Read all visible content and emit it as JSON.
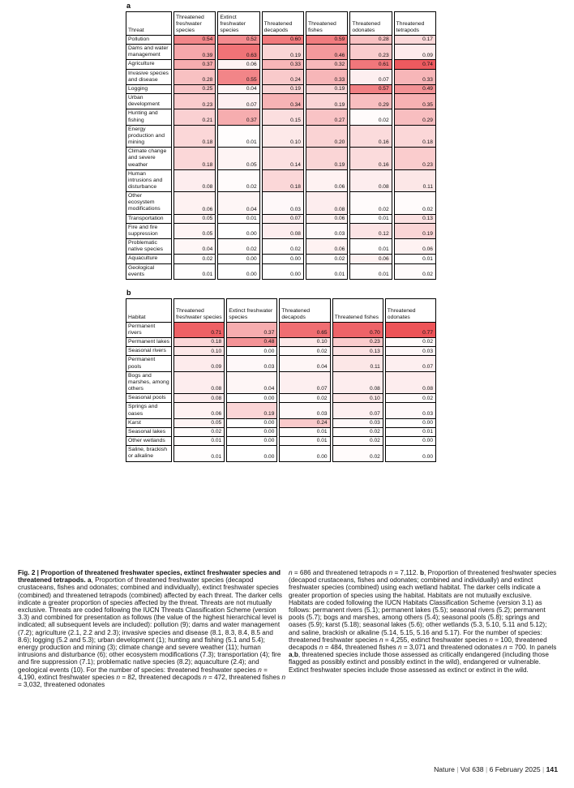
{
  "heat": {
    "zero": "#ffffff",
    "max": "#ec4d52",
    "cap": 0.8,
    "border": "#000000"
  },
  "chart_data": [
    {
      "type": "heatmap",
      "panel": "a",
      "row_header": "Threat",
      "label_col_width": 57,
      "columns": [
        "Threatened freshwater species",
        "Extinct freshwater species",
        "Threatened decapods",
        "Threatened fishes",
        "Threatened odonates",
        "Threatened tetrapods"
      ],
      "value_range": [
        0,
        1
      ],
      "rows": [
        {
          "label": "Pollution",
          "values": [
            0.54,
            0.52,
            0.6,
            0.59,
            0.28,
            0.17
          ]
        },
        {
          "label": "Dams and water management",
          "values": [
            0.39,
            0.63,
            0.19,
            0.46,
            0.23,
            0.09
          ]
        },
        {
          "label": "Agriculture",
          "values": [
            0.37,
            0.06,
            0.33,
            0.32,
            0.61,
            0.74
          ]
        },
        {
          "label": "Invasive species and disease",
          "values": [
            0.28,
            0.55,
            0.24,
            0.33,
            0.07,
            0.33
          ]
        },
        {
          "label": "Logging",
          "values": [
            0.25,
            0.04,
            0.19,
            0.19,
            0.57,
            0.49
          ]
        },
        {
          "label": "Urban development",
          "values": [
            0.23,
            0.07,
            0.34,
            0.19,
            0.29,
            0.35
          ]
        },
        {
          "label": "Hunting and fishing",
          "values": [
            0.21,
            0.37,
            0.15,
            0.27,
            0.02,
            0.29
          ]
        },
        {
          "label": "Energy production and mining",
          "values": [
            0.18,
            0.01,
            0.1,
            0.2,
            0.16,
            0.18
          ]
        },
        {
          "label": "Climate change and severe weather",
          "values": [
            0.18,
            0.05,
            0.14,
            0.19,
            0.16,
            0.23
          ]
        },
        {
          "label": "Human intrusions and disturbance",
          "values": [
            0.08,
            0.02,
            0.18,
            0.06,
            0.08,
            0.11
          ]
        },
        {
          "label": "Other ecosystem modifications",
          "values": [
            0.06,
            0.04,
            0.03,
            0.08,
            0.02,
            0.02
          ]
        },
        {
          "label": "Transportation",
          "values": [
            0.05,
            0.01,
            0.07,
            0.06,
            0.01,
            0.13
          ]
        },
        {
          "label": "Fire and fire suppression",
          "values": [
            0.05,
            0.0,
            0.08,
            0.03,
            0.12,
            0.19
          ]
        },
        {
          "label": "Problematic native species",
          "values": [
            0.04,
            0.02,
            0.02,
            0.06,
            0.01,
            0.06
          ]
        },
        {
          "label": "Aquaculture",
          "values": [
            0.02,
            0.0,
            0.0,
            0.02,
            0.06,
            0.01
          ]
        },
        {
          "label": "Geological events",
          "values": [
            0.01,
            0.0,
            0.0,
            0.01,
            0.01,
            0.02
          ]
        }
      ]
    },
    {
      "type": "heatmap",
      "panel": "b",
      "row_header": "Habitat",
      "label_col_width": 57,
      "columns": [
        "Threatened freshwater species",
        "Extinct freshwater species",
        "Threatened decapods",
        "Threatened fishes",
        "Threatened odonates"
      ],
      "value_range": [
        0,
        1
      ],
      "rows": [
        {
          "label": "Permanent rivers",
          "values": [
            0.71,
            0.37,
            0.65,
            0.7,
            0.77
          ]
        },
        {
          "label": "Permanent lakes",
          "values": [
            0.18,
            0.48,
            0.1,
            0.23,
            0.02
          ]
        },
        {
          "label": "Seasonal rivers",
          "values": [
            0.1,
            0.0,
            0.02,
            0.13,
            0.03
          ]
        },
        {
          "label": "Permanent pools",
          "values": [
            0.09,
            0.03,
            0.04,
            0.11,
            0.07
          ]
        },
        {
          "label": "Bogs and marshes, among others",
          "values": [
            0.08,
            0.04,
            0.07,
            0.08,
            0.08
          ]
        },
        {
          "label": "Seasonal pools",
          "values": [
            0.08,
            0.0,
            0.02,
            0.1,
            0.02
          ]
        },
        {
          "label": "Springs and oases",
          "values": [
            0.06,
            0.19,
            0.03,
            0.07,
            0.03
          ]
        },
        {
          "label": "Karst",
          "values": [
            0.05,
            0.0,
            0.24,
            0.03,
            0.0
          ]
        },
        {
          "label": "Seasonal lakes",
          "values": [
            0.02,
            0.0,
            0.01,
            0.02,
            0.01
          ]
        },
        {
          "label": "Other wetlands",
          "values": [
            0.01,
            0.0,
            0.01,
            0.02,
            0.0
          ]
        },
        {
          "label": "Saline, brackish or alkaline",
          "values": [
            0.01,
            0.0,
            0.0,
            0.02,
            0.0
          ]
        }
      ]
    }
  ],
  "caption": {
    "left_segments": [
      {
        "t": "Fig. 2 | Proportion of threatened freshwater species, extinct freshwater species and threatened tetrapods. ",
        "b": true
      },
      {
        "t": "a",
        "b": true
      },
      {
        "t": ", Proportion of threatened freshwater species (decapod crustaceans, fishes and odonates; combined and individually), extinct freshwater species (combined) and threatened tetrapods (combined) affected by each threat. The darker cells indicate a greater proportion of species affected by the threat. Threats are not mutually exclusive. Threats are coded following the IUCN Threats Classification Scheme (version 3.3) and combined for presentation as follows (the value of the highest hierarchical level is indicated; all subsequent levels are included): pollution (9); dams and water management (7.2); agriculture (2.1, 2.2 and 2.3); invasive species and disease (8.1, 8.3, 8.4, 8.5 and 8.6); logging (5.2 and 5.3); urban development (1); hunting and fishing (5.1 and 5.4); energy production and mining (3); climate change and severe weather (11); human intrusions and disturbance (6); other ecosystem modifications (7.3); transportation (4); fire and fire suppression (7.1); problematic native species (8.2); aquaculture (2.4); and geological events (10). For the number of species: threatened freshwater species "
      },
      {
        "t": "n",
        "i": true
      },
      {
        "t": " = 4,190, extinct freshwater species "
      },
      {
        "t": "n",
        "i": true
      },
      {
        "t": " = 82, threatened decapods "
      },
      {
        "t": "n",
        "i": true
      },
      {
        "t": " = 472, threatened fishes "
      },
      {
        "t": "n",
        "i": true
      },
      {
        "t": " = 3,032, threatened odonates"
      }
    ],
    "right_segments": [
      {
        "t": "n",
        "i": true
      },
      {
        "t": " = 686 and threatened tetrapods "
      },
      {
        "t": "n",
        "i": true
      },
      {
        "t": " = 7,112. "
      },
      {
        "t": "b",
        "b": true
      },
      {
        "t": ", Proportion of threatened freshwater species (decapod crustaceans, fishes and odonates; combined and individually) and extinct freshwater species (combined) using each wetland habitat. The darker cells indicate a greater proportion of species using the habitat. Habitats are not mutually exclusive. Habitats are coded following the IUCN Habitats Classification Scheme (version 3.1) as follows: permanent rivers (5.1); permanent lakes (5.5); seasonal rivers (5.2); permanent pools (5.7); bogs and marshes, among others (5.4); seasonal pools (5.8); springs and oases (5.9); karst (5.18); seasonal lakes (5.6); other wetlands (5.3, 5.10, 5.11 and 5.12); and saline, brackish or alkaline (5.14, 5.15, 5.16 and 5.17). For the number of species: threatened freshwater species "
      },
      {
        "t": "n",
        "i": true
      },
      {
        "t": " = 4,255, extinct freshwater species "
      },
      {
        "t": "n",
        "i": true
      },
      {
        "t": " = 100, threatened decapods "
      },
      {
        "t": "n",
        "i": true
      },
      {
        "t": " = 484, threatened fishes "
      },
      {
        "t": "n",
        "i": true
      },
      {
        "t": " = 3,071 and threatened odonates "
      },
      {
        "t": "n",
        "i": true
      },
      {
        "t": " = 700. In panels "
      },
      {
        "t": "a",
        "b": true
      },
      {
        "t": ","
      },
      {
        "t": "b",
        "b": true
      },
      {
        "t": ", threatened species include those assessed as critically endangered (including those flagged as possibly extinct and possibly extinct in the wild), endangered or vulnerable. Extinct freshwater species include those assessed as extinct or extinct in the wild."
      }
    ]
  },
  "footer_segments": [
    {
      "t": "Nature"
    },
    {
      "t": "  |  ",
      "c": "#9c9c9c"
    },
    {
      "t": "Vol 638"
    },
    {
      "t": "  |  ",
      "c": "#9c9c9c"
    },
    {
      "t": "6 February 2025"
    },
    {
      "t": "  |  ",
      "c": "#9c9c9c"
    },
    {
      "t": "141",
      "b": true
    }
  ]
}
